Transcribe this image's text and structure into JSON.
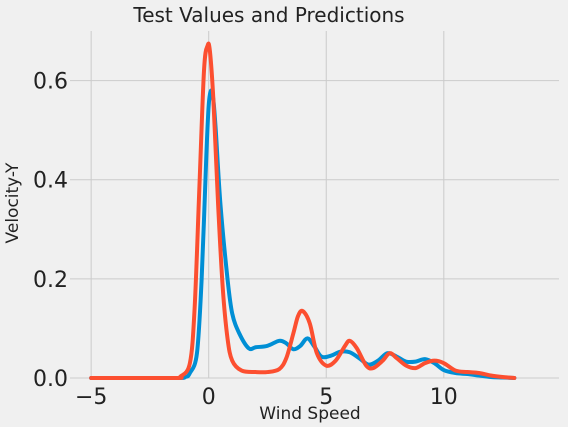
{
  "chart_data": {
    "type": "line",
    "title": "Test Values and Predictions",
    "xlabel": "Wind Speed",
    "ylabel": "Velocity-Y",
    "xlim": [
      -5.9,
      14.9
    ],
    "ylim": [
      0,
      0.7
    ],
    "xticks": [
      -5,
      0,
      5,
      10
    ],
    "xtick_labels": [
      "−5",
      "0",
      "5",
      "10"
    ],
    "yticks": [
      0.0,
      0.2,
      0.4,
      0.6
    ],
    "ytick_labels": [
      "0.0",
      "0.2",
      "0.4",
      "0.6"
    ],
    "grid": true,
    "background": "#f0f0f0",
    "series": [
      {
        "color": "#008fd5",
        "x": [
          -5.0,
          -1.5,
          -1.0,
          -0.8,
          -0.5,
          -0.3,
          -0.1,
          0.0,
          0.1,
          0.2,
          0.3,
          0.5,
          0.8,
          1.0,
          1.3,
          1.7,
          2.0,
          2.5,
          3.0,
          3.3,
          3.6,
          3.9,
          4.2,
          4.5,
          4.8,
          5.2,
          5.6,
          6.0,
          6.4,
          6.8,
          7.2,
          7.6,
          8.0,
          8.4,
          8.8,
          9.2,
          9.6,
          10.0,
          10.5,
          11.0,
          11.5,
          12.0,
          12.5,
          13.0
        ],
        "y": [
          0.0,
          0.0,
          0.002,
          0.01,
          0.05,
          0.2,
          0.45,
          0.55,
          0.58,
          0.56,
          0.5,
          0.35,
          0.2,
          0.13,
          0.09,
          0.06,
          0.062,
          0.065,
          0.075,
          0.07,
          0.058,
          0.065,
          0.08,
          0.063,
          0.043,
          0.045,
          0.053,
          0.052,
          0.04,
          0.027,
          0.035,
          0.05,
          0.043,
          0.033,
          0.033,
          0.038,
          0.03,
          0.016,
          0.01,
          0.008,
          0.005,
          0.002,
          0.001,
          0.0
        ]
      },
      {
        "color": "#fc4f30",
        "x": [
          -5.0,
          -1.5,
          -1.2,
          -0.8,
          -0.6,
          -0.4,
          -0.2,
          -0.05,
          0.05,
          0.2,
          0.4,
          0.6,
          0.8,
          1.0,
          1.4,
          2.0,
          2.5,
          3.0,
          3.3,
          3.6,
          3.8,
          4.0,
          4.3,
          4.6,
          5.0,
          5.4,
          5.8,
          6.0,
          6.3,
          6.7,
          7.0,
          7.4,
          7.7,
          8.0,
          8.4,
          8.8,
          9.2,
          9.6,
          10.0,
          10.5,
          11.0,
          11.5,
          12.0,
          12.5,
          13.0
        ],
        "y": [
          0.0,
          0.0,
          0.003,
          0.03,
          0.14,
          0.38,
          0.62,
          0.67,
          0.66,
          0.56,
          0.35,
          0.18,
          0.08,
          0.035,
          0.015,
          0.012,
          0.012,
          0.018,
          0.04,
          0.09,
          0.125,
          0.135,
          0.11,
          0.05,
          0.025,
          0.035,
          0.065,
          0.075,
          0.06,
          0.025,
          0.02,
          0.035,
          0.05,
          0.04,
          0.025,
          0.02,
          0.03,
          0.035,
          0.03,
          0.015,
          0.012,
          0.01,
          0.005,
          0.002,
          0.0
        ]
      }
    ]
  }
}
